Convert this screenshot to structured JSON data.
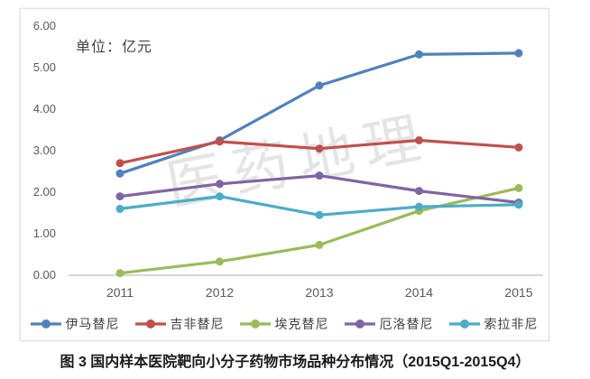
{
  "figure": {
    "unit_label": "单位：亿元",
    "watermark": "医药地理",
    "caption": "图 3  国内样本医院靶向小分子药物市场品种分布情况（2015Q1-2015Q4）"
  },
  "chart_data": {
    "type": "line",
    "title": "",
    "unit_label": "单位：亿元",
    "categories": [
      "2011",
      "2012",
      "2013",
      "2014",
      "2015"
    ],
    "series": [
      {
        "name": "伊马替尼",
        "color": "#4F81BD",
        "values": [
          2.45,
          3.25,
          4.57,
          5.32,
          5.35
        ]
      },
      {
        "name": "吉非替尼",
        "color": "#C0504D",
        "values": [
          2.7,
          3.22,
          3.05,
          3.25,
          3.08
        ]
      },
      {
        "name": "埃克替尼",
        "color": "#9BBB59",
        "values": [
          0.05,
          0.33,
          0.73,
          1.55,
          2.1
        ]
      },
      {
        "name": "厄洛替尼",
        "color": "#8064A2",
        "values": [
          1.9,
          2.2,
          2.4,
          2.03,
          1.75
        ]
      },
      {
        "name": "索拉非尼",
        "color": "#4BACC6",
        "values": [
          1.6,
          1.9,
          1.45,
          1.65,
          1.7
        ]
      }
    ],
    "ylim": [
      0,
      6
    ],
    "ytick_step": 1,
    "ytick_labels": [
      "0.00",
      "1.00",
      "2.00",
      "3.00",
      "4.00",
      "5.00",
      "6.00"
    ],
    "xlabel": "",
    "ylabel": "",
    "grid": false,
    "legend_position": "bottom"
  },
  "colors": {
    "axis_text": "#595959",
    "axis_line": "#c9c9c9",
    "caption_text": "#1a1a1a",
    "panel_border": "#e0e0e0"
  }
}
